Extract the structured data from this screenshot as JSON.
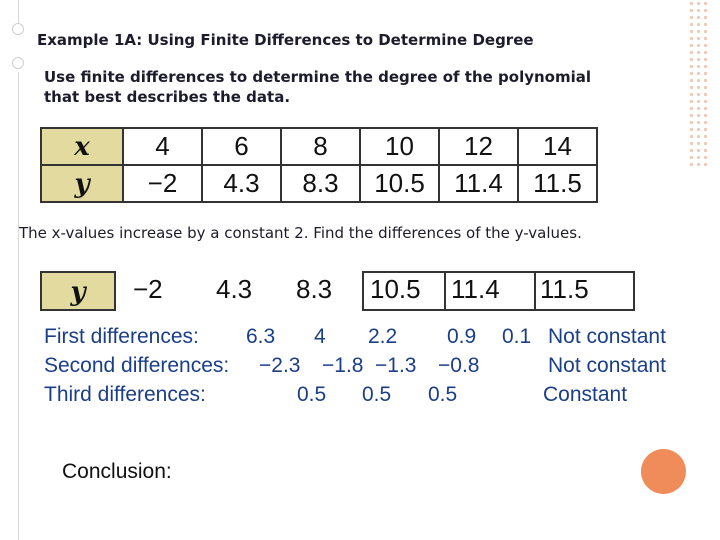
{
  "title": "Example 1A: Using Finite Differences to Determine Degree",
  "instruction": "Use finite differences to determine the degree of the polynomial that best describes the data.",
  "table": {
    "x_label": "x",
    "y_label": "y",
    "x_values": [
      "4",
      "6",
      "8",
      "10",
      "12",
      "14"
    ],
    "y_values": [
      "−2",
      "4.3",
      "8.3",
      "10.5",
      "11.4",
      "11.5"
    ]
  },
  "note": "The x-values increase by a constant 2. Find the differences of the y-values.",
  "y_row": {
    "label": "y",
    "values": [
      "−2",
      "4.3",
      "8.3",
      "10.5",
      "11.4",
      "11.5"
    ]
  },
  "first": {
    "label": "First differences:",
    "values": [
      "6.3",
      "4",
      "2.2",
      "0.9",
      "0.1"
    ],
    "status": "Not constant"
  },
  "second": {
    "label": "Second differences:",
    "values": [
      "−2.3",
      "−1.8",
      "−1.3",
      "−0.8"
    ],
    "status": "Not constant"
  },
  "third": {
    "label": "Third differences:",
    "values": [
      "0.5",
      "0.5",
      "0.5"
    ],
    "status": "Constant"
  },
  "conclusion_label": "Conclusion:",
  "colors": {
    "accent": "#f08c5a",
    "header_fill": "#e2da9e",
    "diff_text": "#1b3e88"
  }
}
